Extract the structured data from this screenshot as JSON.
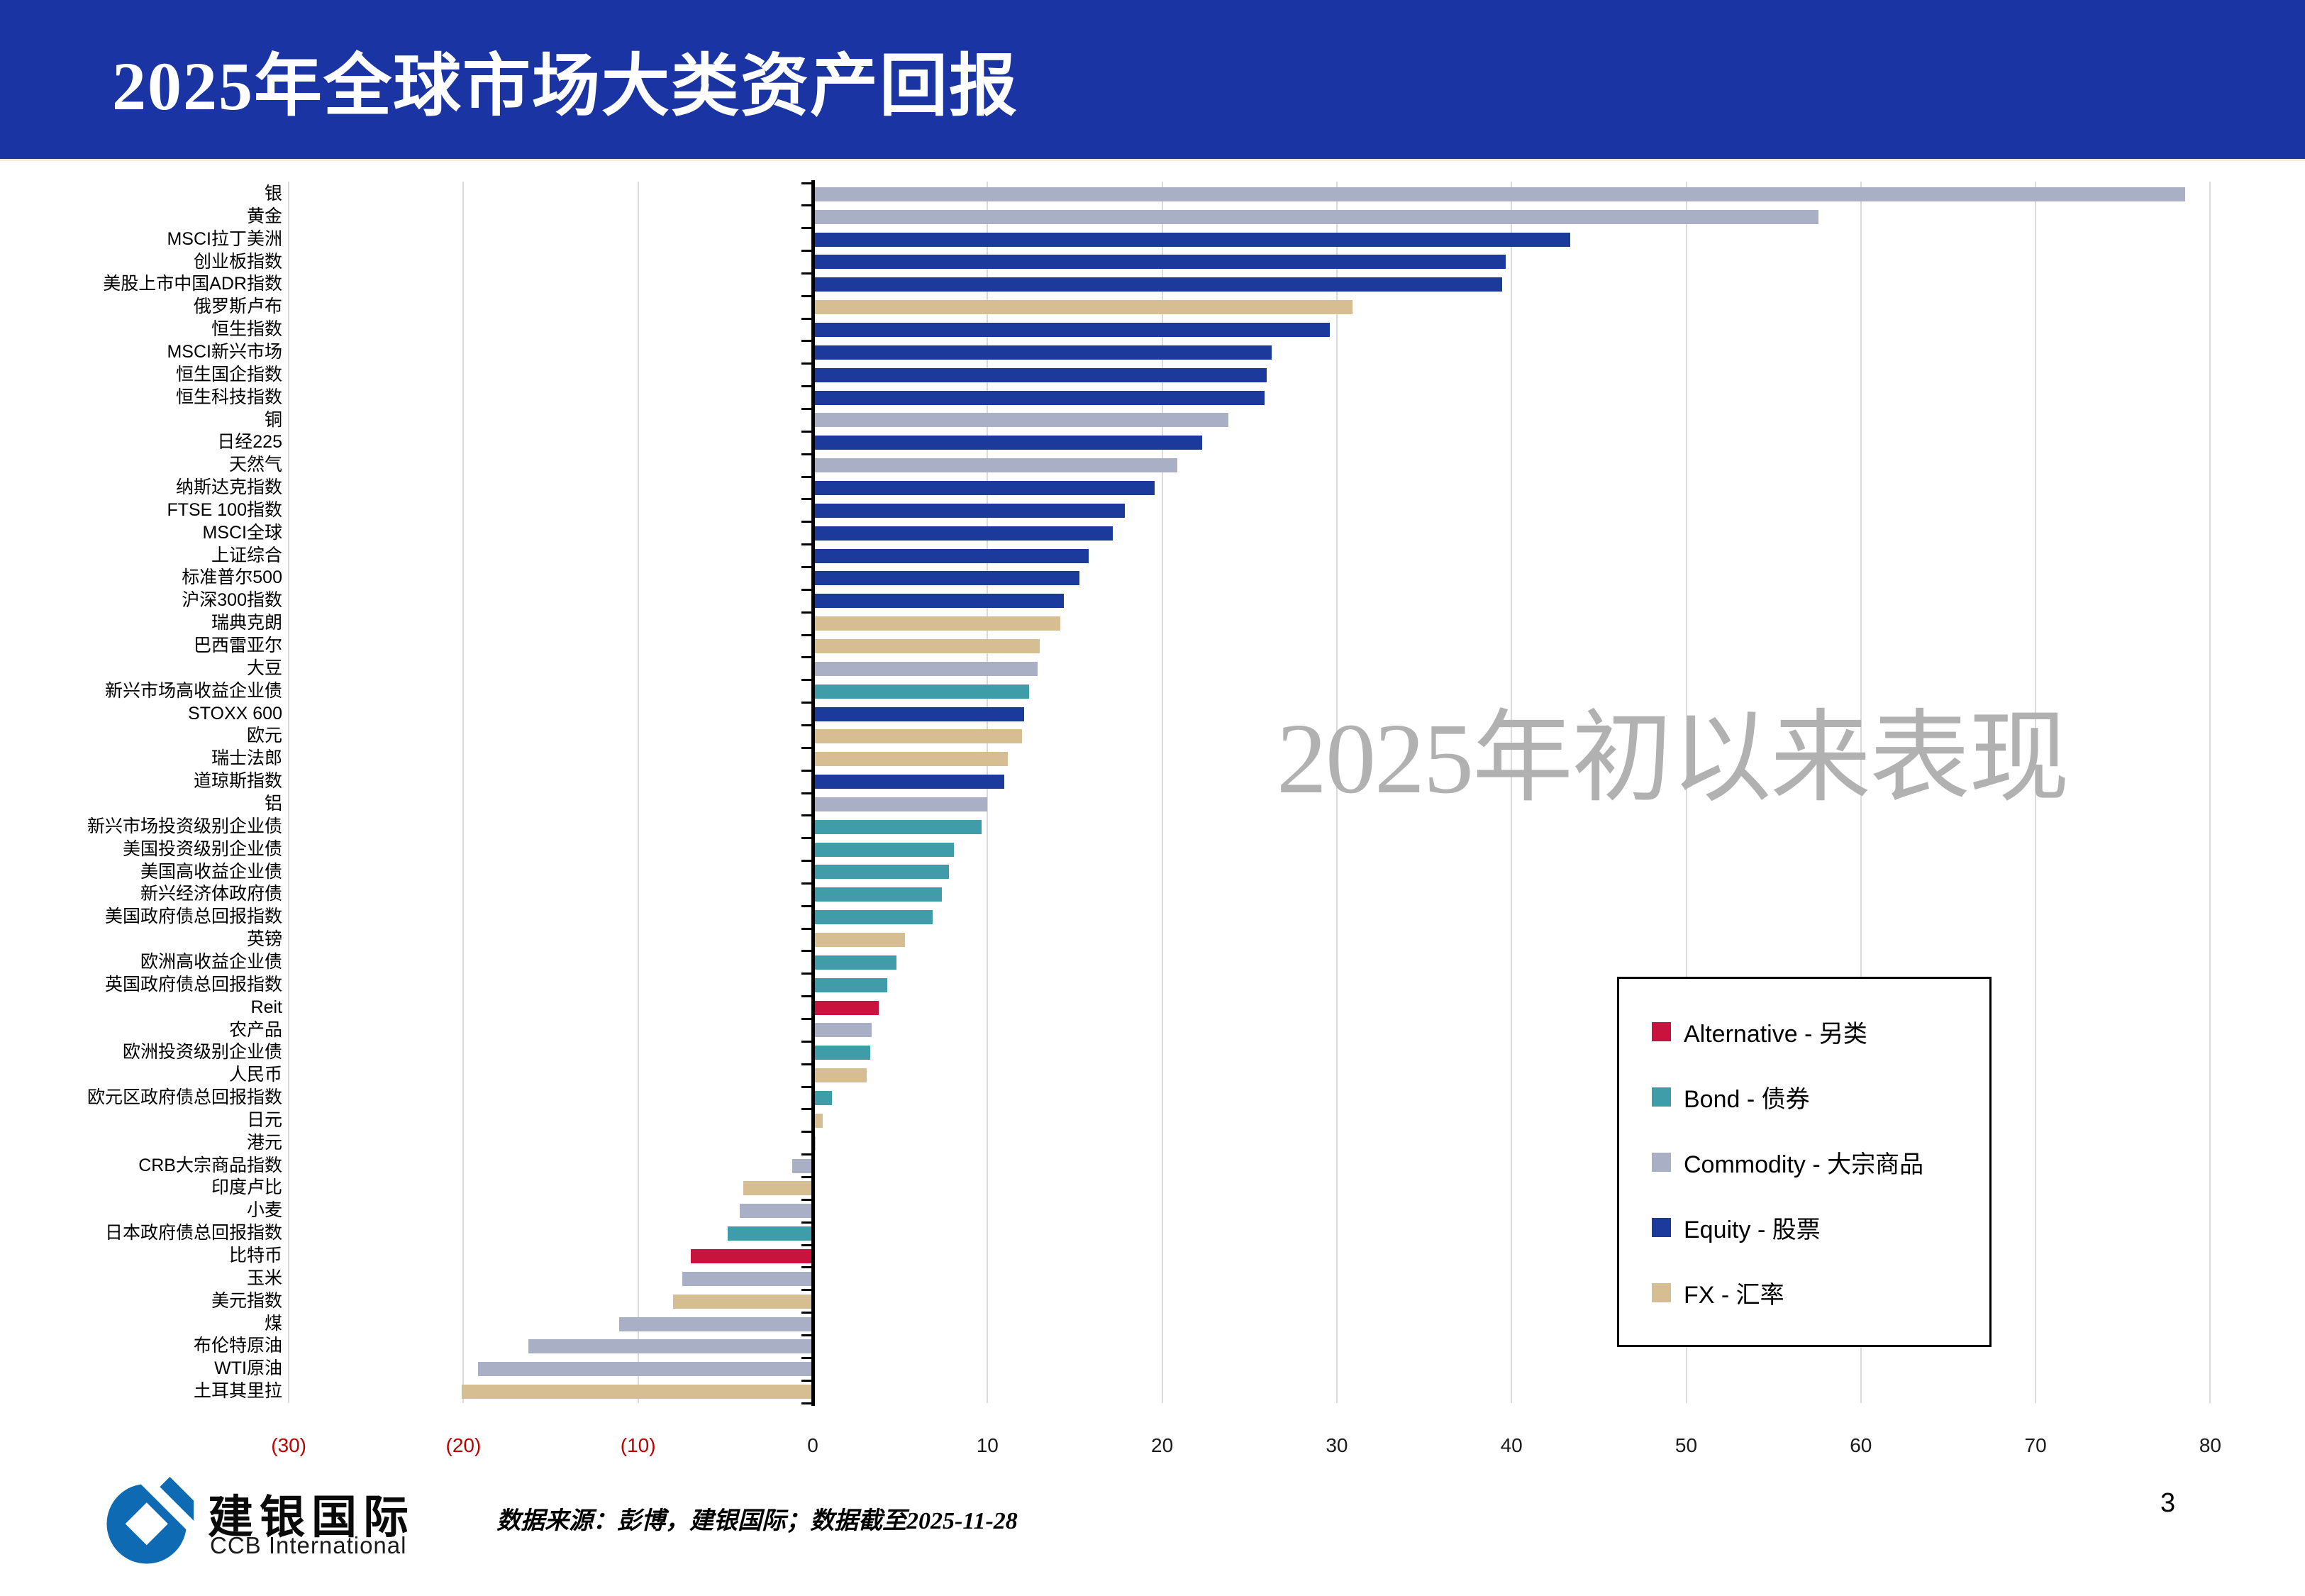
{
  "header": {
    "title": "2025年全球市场大类资产回报"
  },
  "watermark": "2025年初以来表现",
  "legend": {
    "items": [
      {
        "name": "alternative",
        "label": "Alternative - 另类",
        "color": "#C8133E"
      },
      {
        "name": "bond",
        "label": "Bond - 债券",
        "color": "#3E9DA9"
      },
      {
        "name": "commodity",
        "label": "Commodity - 大宗商品",
        "color": "#A9B0C6"
      },
      {
        "name": "equity",
        "label": "Equity - 股票",
        "color": "#1B3A9C"
      },
      {
        "name": "fx",
        "label": "FX - 汇率",
        "color": "#D7BD92"
      }
    ]
  },
  "footer": {
    "logo_cn": "建银国际",
    "logo_en": "CCB International",
    "source": "数据来源：彭博，建银国际；数据截至2025-11-28",
    "page_number": "3"
  },
  "chart_data": {
    "type": "bar",
    "orientation": "horizontal",
    "title": "2025年全球市场大类资产回报",
    "annotation": "2025年初以来表现",
    "xlim": [
      -30,
      80
    ],
    "grid": true,
    "legend_position": "middle-right",
    "x_ticks": [
      -30,
      -20,
      -10,
      0,
      10,
      20,
      30,
      40,
      50,
      60,
      70,
      80
    ],
    "x_tick_labels": [
      "(30)",
      "(20)",
      "(10)",
      "0",
      "10",
      "20",
      "30",
      "40",
      "50",
      "60",
      "70",
      "80"
    ],
    "negative_label_color": "#C00000",
    "class_colors": {
      "Alternative": "#C8133E",
      "Bond": "#3E9DA9",
      "Commodity": "#A9B0C6",
      "Equity": "#1B3A9C",
      "FX": "#D7BD92"
    },
    "series": [
      {
        "category": "银",
        "class": "Commodity",
        "value": 78.5
      },
      {
        "category": "黄金",
        "class": "Commodity",
        "value": 57.5
      },
      {
        "category": "MSCI拉丁美洲",
        "class": "Equity",
        "value": 43.3
      },
      {
        "category": "创业板指数",
        "class": "Equity",
        "value": 39.6
      },
      {
        "category": "美股上市中国ADR指数",
        "class": "Equity",
        "value": 39.4
      },
      {
        "category": "俄罗斯卢布",
        "class": "FX",
        "value": 30.8
      },
      {
        "category": "恒生指数",
        "class": "Equity",
        "value": 29.5
      },
      {
        "category": "MSCI新兴市场",
        "class": "Equity",
        "value": 26.2
      },
      {
        "category": "恒生国企指数",
        "class": "Equity",
        "value": 25.9
      },
      {
        "category": "恒生科技指数",
        "class": "Equity",
        "value": 25.8
      },
      {
        "category": "铜",
        "class": "Commodity",
        "value": 23.7
      },
      {
        "category": "日经225",
        "class": "Equity",
        "value": 22.2
      },
      {
        "category": "天然气",
        "class": "Commodity",
        "value": 20.8
      },
      {
        "category": "纳斯达克指数",
        "class": "Equity",
        "value": 19.5
      },
      {
        "category": "FTSE 100指数",
        "class": "Equity",
        "value": 17.8
      },
      {
        "category": "MSCI全球",
        "class": "Equity",
        "value": 17.1
      },
      {
        "category": "上证综合",
        "class": "Equity",
        "value": 15.7
      },
      {
        "category": "标准普尔500",
        "class": "Equity",
        "value": 15.2
      },
      {
        "category": "沪深300指数",
        "class": "Equity",
        "value": 14.3
      },
      {
        "category": "瑞典克朗",
        "class": "FX",
        "value": 14.1
      },
      {
        "category": "巴西雷亚尔",
        "class": "FX",
        "value": 12.9
      },
      {
        "category": "大豆",
        "class": "Commodity",
        "value": 12.8
      },
      {
        "category": "新兴市场高收益企业债",
        "class": "Bond",
        "value": 12.3
      },
      {
        "category": "STOXX 600",
        "class": "Equity",
        "value": 12.0
      },
      {
        "category": "欧元",
        "class": "FX",
        "value": 11.9
      },
      {
        "category": "瑞士法郎",
        "class": "FX",
        "value": 11.1
      },
      {
        "category": "道琼斯指数",
        "class": "Equity",
        "value": 10.9
      },
      {
        "category": "铝",
        "class": "Commodity",
        "value": 9.9
      },
      {
        "category": "新兴市场投资级别企业债",
        "class": "Bond",
        "value": 9.6
      },
      {
        "category": "美国投资级别企业债",
        "class": "Bond",
        "value": 8.0
      },
      {
        "category": "美国高收益企业债",
        "class": "Bond",
        "value": 7.7
      },
      {
        "category": "新兴经济体政府债",
        "class": "Bond",
        "value": 7.3
      },
      {
        "category": "美国政府债总回报指数",
        "class": "Bond",
        "value": 6.8
      },
      {
        "category": "英镑",
        "class": "FX",
        "value": 5.2
      },
      {
        "category": "欧洲高收益企业债",
        "class": "Bond",
        "value": 4.7
      },
      {
        "category": "英国政府债总回报指数",
        "class": "Bond",
        "value": 4.2
      },
      {
        "category": "Reit",
        "class": "Alternative",
        "value": 3.7
      },
      {
        "category": "农产品",
        "class": "Commodity",
        "value": 3.3
      },
      {
        "category": "欧洲投资级别企业债",
        "class": "Bond",
        "value": 3.2
      },
      {
        "category": "人民币",
        "class": "FX",
        "value": 3.0
      },
      {
        "category": "欧元区政府债总回报指数",
        "class": "Bond",
        "value": 1.0
      },
      {
        "category": "日元",
        "class": "FX",
        "value": 0.5
      },
      {
        "category": "港元",
        "class": "FX",
        "value": 0.1
      },
      {
        "category": "CRB大宗商品指数",
        "class": "Commodity",
        "value": -1.1
      },
      {
        "category": "印度卢比",
        "class": "FX",
        "value": -3.9
      },
      {
        "category": "小麦",
        "class": "Commodity",
        "value": -4.1
      },
      {
        "category": "日本政府债总回报指数",
        "class": "Bond",
        "value": -4.8
      },
      {
        "category": "比特币",
        "class": "Alternative",
        "value": -6.9
      },
      {
        "category": "玉米",
        "class": "Commodity",
        "value": -7.4
      },
      {
        "category": "美元指数",
        "class": "FX",
        "value": -7.9
      },
      {
        "category": "煤",
        "class": "Commodity",
        "value": -11.0
      },
      {
        "category": "布伦特原油",
        "class": "Commodity",
        "value": -16.2
      },
      {
        "category": "WTI原油",
        "class": "Commodity",
        "value": -19.1
      },
      {
        "category": "土耳其里拉",
        "class": "FX",
        "value": -20.0
      }
    ]
  }
}
